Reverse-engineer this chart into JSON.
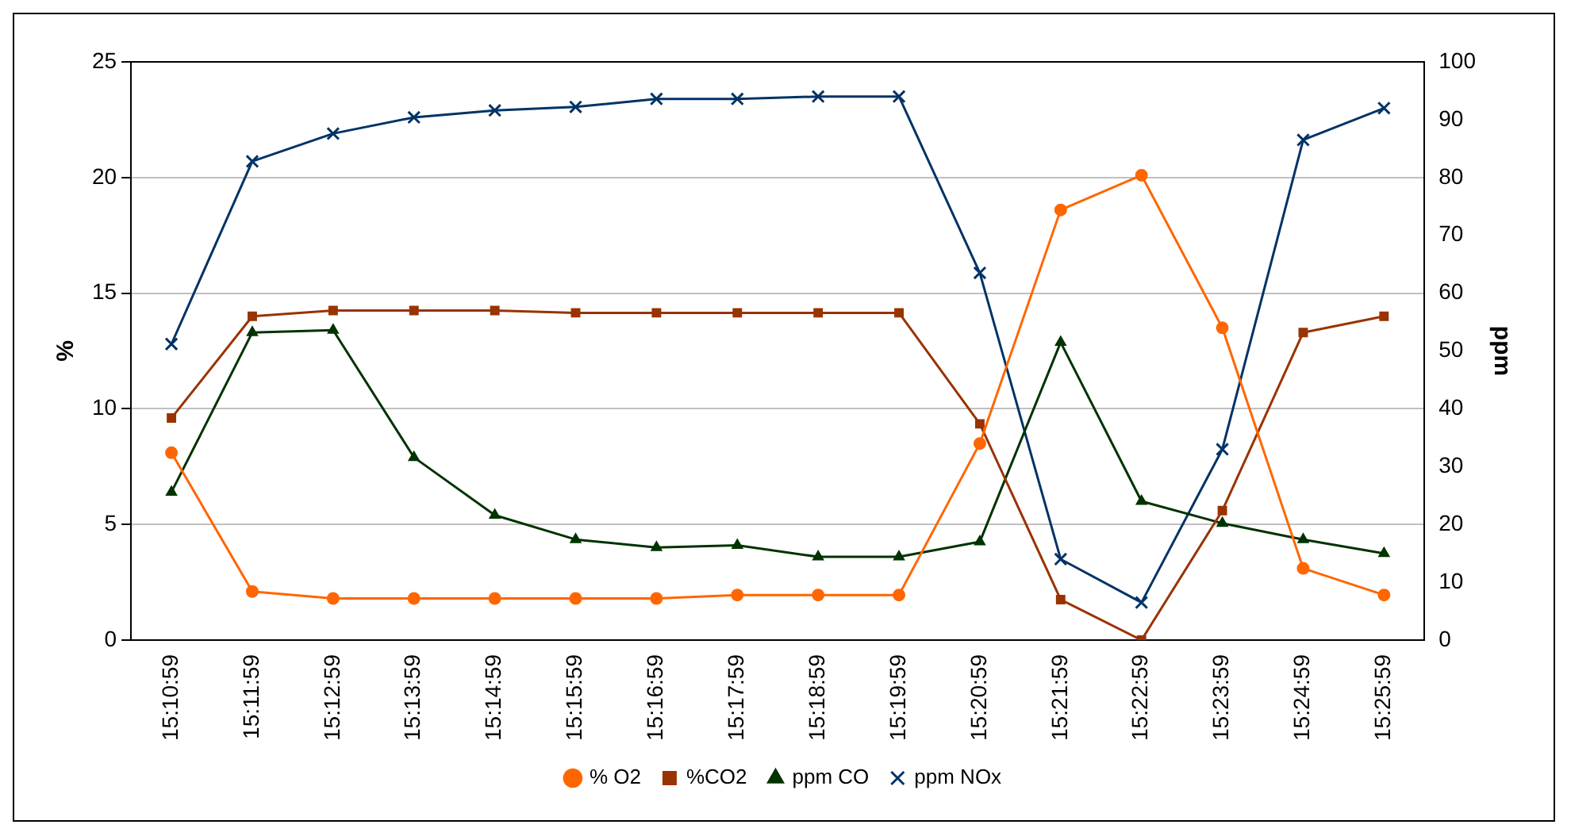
{
  "chart_data": {
    "type": "line",
    "ylabel": "%",
    "y2label": "ppm",
    "categories": [
      "15:10:59",
      "15:11:59",
      "15:12:59",
      "15:13:59",
      "15:14:59",
      "15:15:59",
      "15:16:59",
      "15:17:59",
      "15:18:59",
      "15:19:59",
      "15:20:59",
      "15:21:59",
      "15:22:59",
      "15:23:59",
      "15:24:59",
      "15:25:59"
    ],
    "series": [
      {
        "name": "% O2",
        "color": "#ff6600",
        "marker": "circle",
        "values": [
          8.1,
          2.1,
          1.8,
          1.8,
          1.8,
          1.8,
          1.8,
          1.95,
          1.95,
          1.95,
          8.5,
          18.6,
          20.1,
          13.5,
          3.1,
          1.95
        ]
      },
      {
        "name": "%CO2",
        "color": "#993300",
        "marker": "square",
        "values": [
          9.6,
          14.0,
          14.25,
          14.25,
          14.25,
          14.15,
          14.15,
          14.15,
          14.15,
          14.15,
          9.35,
          1.75,
          0,
          5.6,
          13.3,
          14.0
        ]
      },
      {
        "name": "ppm CO",
        "color": "#003300",
        "marker": "triangle",
        "axis": "y2",
        "values": [
          25.6,
          53.2,
          53.6,
          31.6,
          21.6,
          17.4,
          16,
          16.4,
          14.4,
          14.4,
          17,
          51.5,
          24,
          20.2,
          17.4,
          15
        ]
      },
      {
        "name": "ppm NOx",
        "color": "#003366",
        "marker": "cross",
        "axis": "y2",
        "values": [
          51.2,
          82.8,
          87.6,
          90.4,
          91.6,
          92.2,
          93.6,
          93.6,
          94,
          94,
          63.5,
          14,
          6.5,
          33,
          86.5,
          92
        ]
      }
    ],
    "ylim": [
      0,
      25
    ],
    "yticks": [
      0,
      5,
      10,
      15,
      20,
      25
    ],
    "y2lim": [
      0,
      100
    ],
    "y2ticks": [
      0,
      10,
      20,
      30,
      40,
      50,
      60,
      70,
      80,
      90,
      100
    ],
    "grid": "y",
    "legend": "bottom"
  }
}
